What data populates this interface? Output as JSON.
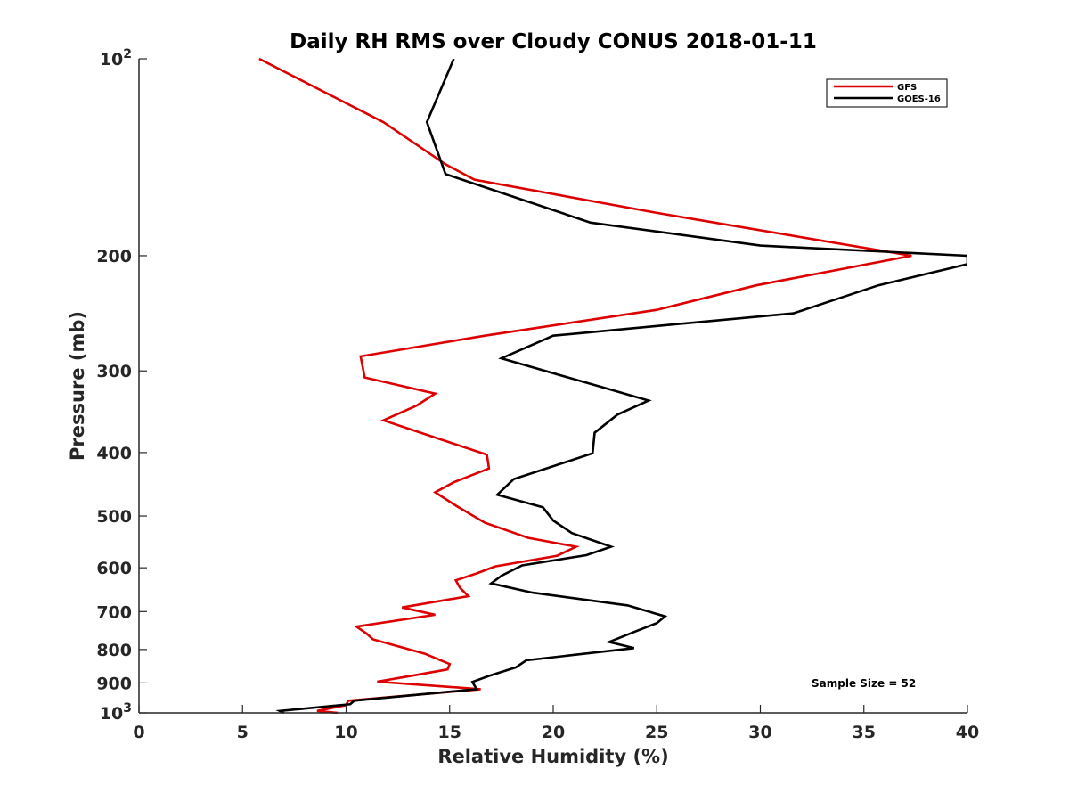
{
  "chart_data": {
    "type": "line",
    "title": "Daily RH RMS over Cloudy CONUS 2018-01-11",
    "xlabel": "Relative Humidity (%)",
    "ylabel": "Pressure (mb)",
    "xlim": [
      0,
      40
    ],
    "ylim": [
      100,
      1000
    ],
    "y_scale": "log",
    "y_reversed": true,
    "grid": false,
    "legend_position": "top-right",
    "x_ticks": [
      0,
      5,
      10,
      15,
      20,
      25,
      30,
      35,
      40
    ],
    "x_tick_labels": [
      "0",
      "5",
      "10",
      "15",
      "20",
      "25",
      "30",
      "35",
      "40"
    ],
    "y_ticks": [
      {
        "value": 100,
        "base": "10",
        "exp": "2"
      },
      {
        "value": 200,
        "label": "200"
      },
      {
        "value": 300,
        "label": "300"
      },
      {
        "value": 400,
        "label": "400"
      },
      {
        "value": 500,
        "label": "500"
      },
      {
        "value": 600,
        "label": "600"
      },
      {
        "value": 700,
        "label": "700"
      },
      {
        "value": 800,
        "label": "800"
      },
      {
        "value": 900,
        "label": "900"
      },
      {
        "value": 1000,
        "base": "10",
        "exp": "3"
      }
    ],
    "series": [
      {
        "name": "GFS",
        "color": "#dd0000",
        "points": [
          [
            5.8,
            100
          ],
          [
            11.8,
            125
          ],
          [
            14.8,
            145
          ],
          [
            16.2,
            153
          ],
          [
            25.0,
            172
          ],
          [
            37.3,
            200
          ],
          [
            29.8,
            222
          ],
          [
            25.0,
            242
          ],
          [
            16.7,
            265
          ],
          [
            10.7,
            285
          ],
          [
            10.9,
            307
          ],
          [
            14.3,
            325
          ],
          [
            13.4,
            339
          ],
          [
            11.8,
            357
          ],
          [
            14.8,
            384
          ],
          [
            16.8,
            403
          ],
          [
            16.9,
            423
          ],
          [
            15.2,
            444
          ],
          [
            14.3,
            460
          ],
          [
            15.3,
            482
          ],
          [
            16.7,
            512
          ],
          [
            18.8,
            540
          ],
          [
            21.1,
            557
          ],
          [
            20.2,
            575
          ],
          [
            17.2,
            597
          ],
          [
            16.3,
            612
          ],
          [
            15.3,
            627
          ],
          [
            15.5,
            644
          ],
          [
            15.9,
            663
          ],
          [
            12.7,
            690
          ],
          [
            14.3,
            708
          ],
          [
            10.5,
            738
          ],
          [
            11.0,
            757
          ],
          [
            11.3,
            772
          ],
          [
            13.8,
            812
          ],
          [
            15.0,
            842
          ],
          [
            14.9,
            858
          ],
          [
            13.3,
            876
          ],
          [
            11.5,
            896
          ],
          [
            16.5,
            920
          ],
          [
            10.1,
            958
          ],
          [
            10.0,
            973
          ],
          [
            8.6,
            993
          ],
          [
            9.6,
            1000
          ]
        ]
      },
      {
        "name": "GOES-16",
        "color": "#000000",
        "points": [
          [
            15.2,
            100
          ],
          [
            13.9,
            125
          ],
          [
            14.8,
            150
          ],
          [
            21.8,
            178
          ],
          [
            30.0,
            193
          ],
          [
            40.0,
            200
          ],
          [
            40.0,
            206
          ],
          [
            35.7,
            222
          ],
          [
            31.6,
            245
          ],
          [
            20.0,
            265
          ],
          [
            17.5,
            287
          ],
          [
            22.4,
            318
          ],
          [
            24.6,
            333
          ],
          [
            23.1,
            350
          ],
          [
            22.0,
            373
          ],
          [
            21.9,
            401
          ],
          [
            18.1,
            439
          ],
          [
            17.3,
            464
          ],
          [
            19.5,
            485
          ],
          [
            20.0,
            508
          ],
          [
            20.9,
            531
          ],
          [
            22.8,
            557
          ],
          [
            21.6,
            574
          ],
          [
            18.5,
            595
          ],
          [
            17.5,
            617
          ],
          [
            17.0,
            634
          ],
          [
            19.0,
            655
          ],
          [
            23.6,
            685
          ],
          [
            25.4,
            712
          ],
          [
            25.0,
            729
          ],
          [
            24.0,
            750
          ],
          [
            22.7,
            779
          ],
          [
            23.9,
            796
          ],
          [
            18.7,
            831
          ],
          [
            18.2,
            852
          ],
          [
            16.9,
            878
          ],
          [
            16.1,
            897
          ],
          [
            16.3,
            920
          ],
          [
            10.4,
            958
          ],
          [
            10.2,
            970
          ],
          [
            6.8,
            993
          ],
          [
            7.0,
            1000
          ]
        ]
      }
    ],
    "annotations": [
      {
        "text": "Sample Size = 52",
        "x": 33.0,
        "y": 917
      }
    ]
  }
}
